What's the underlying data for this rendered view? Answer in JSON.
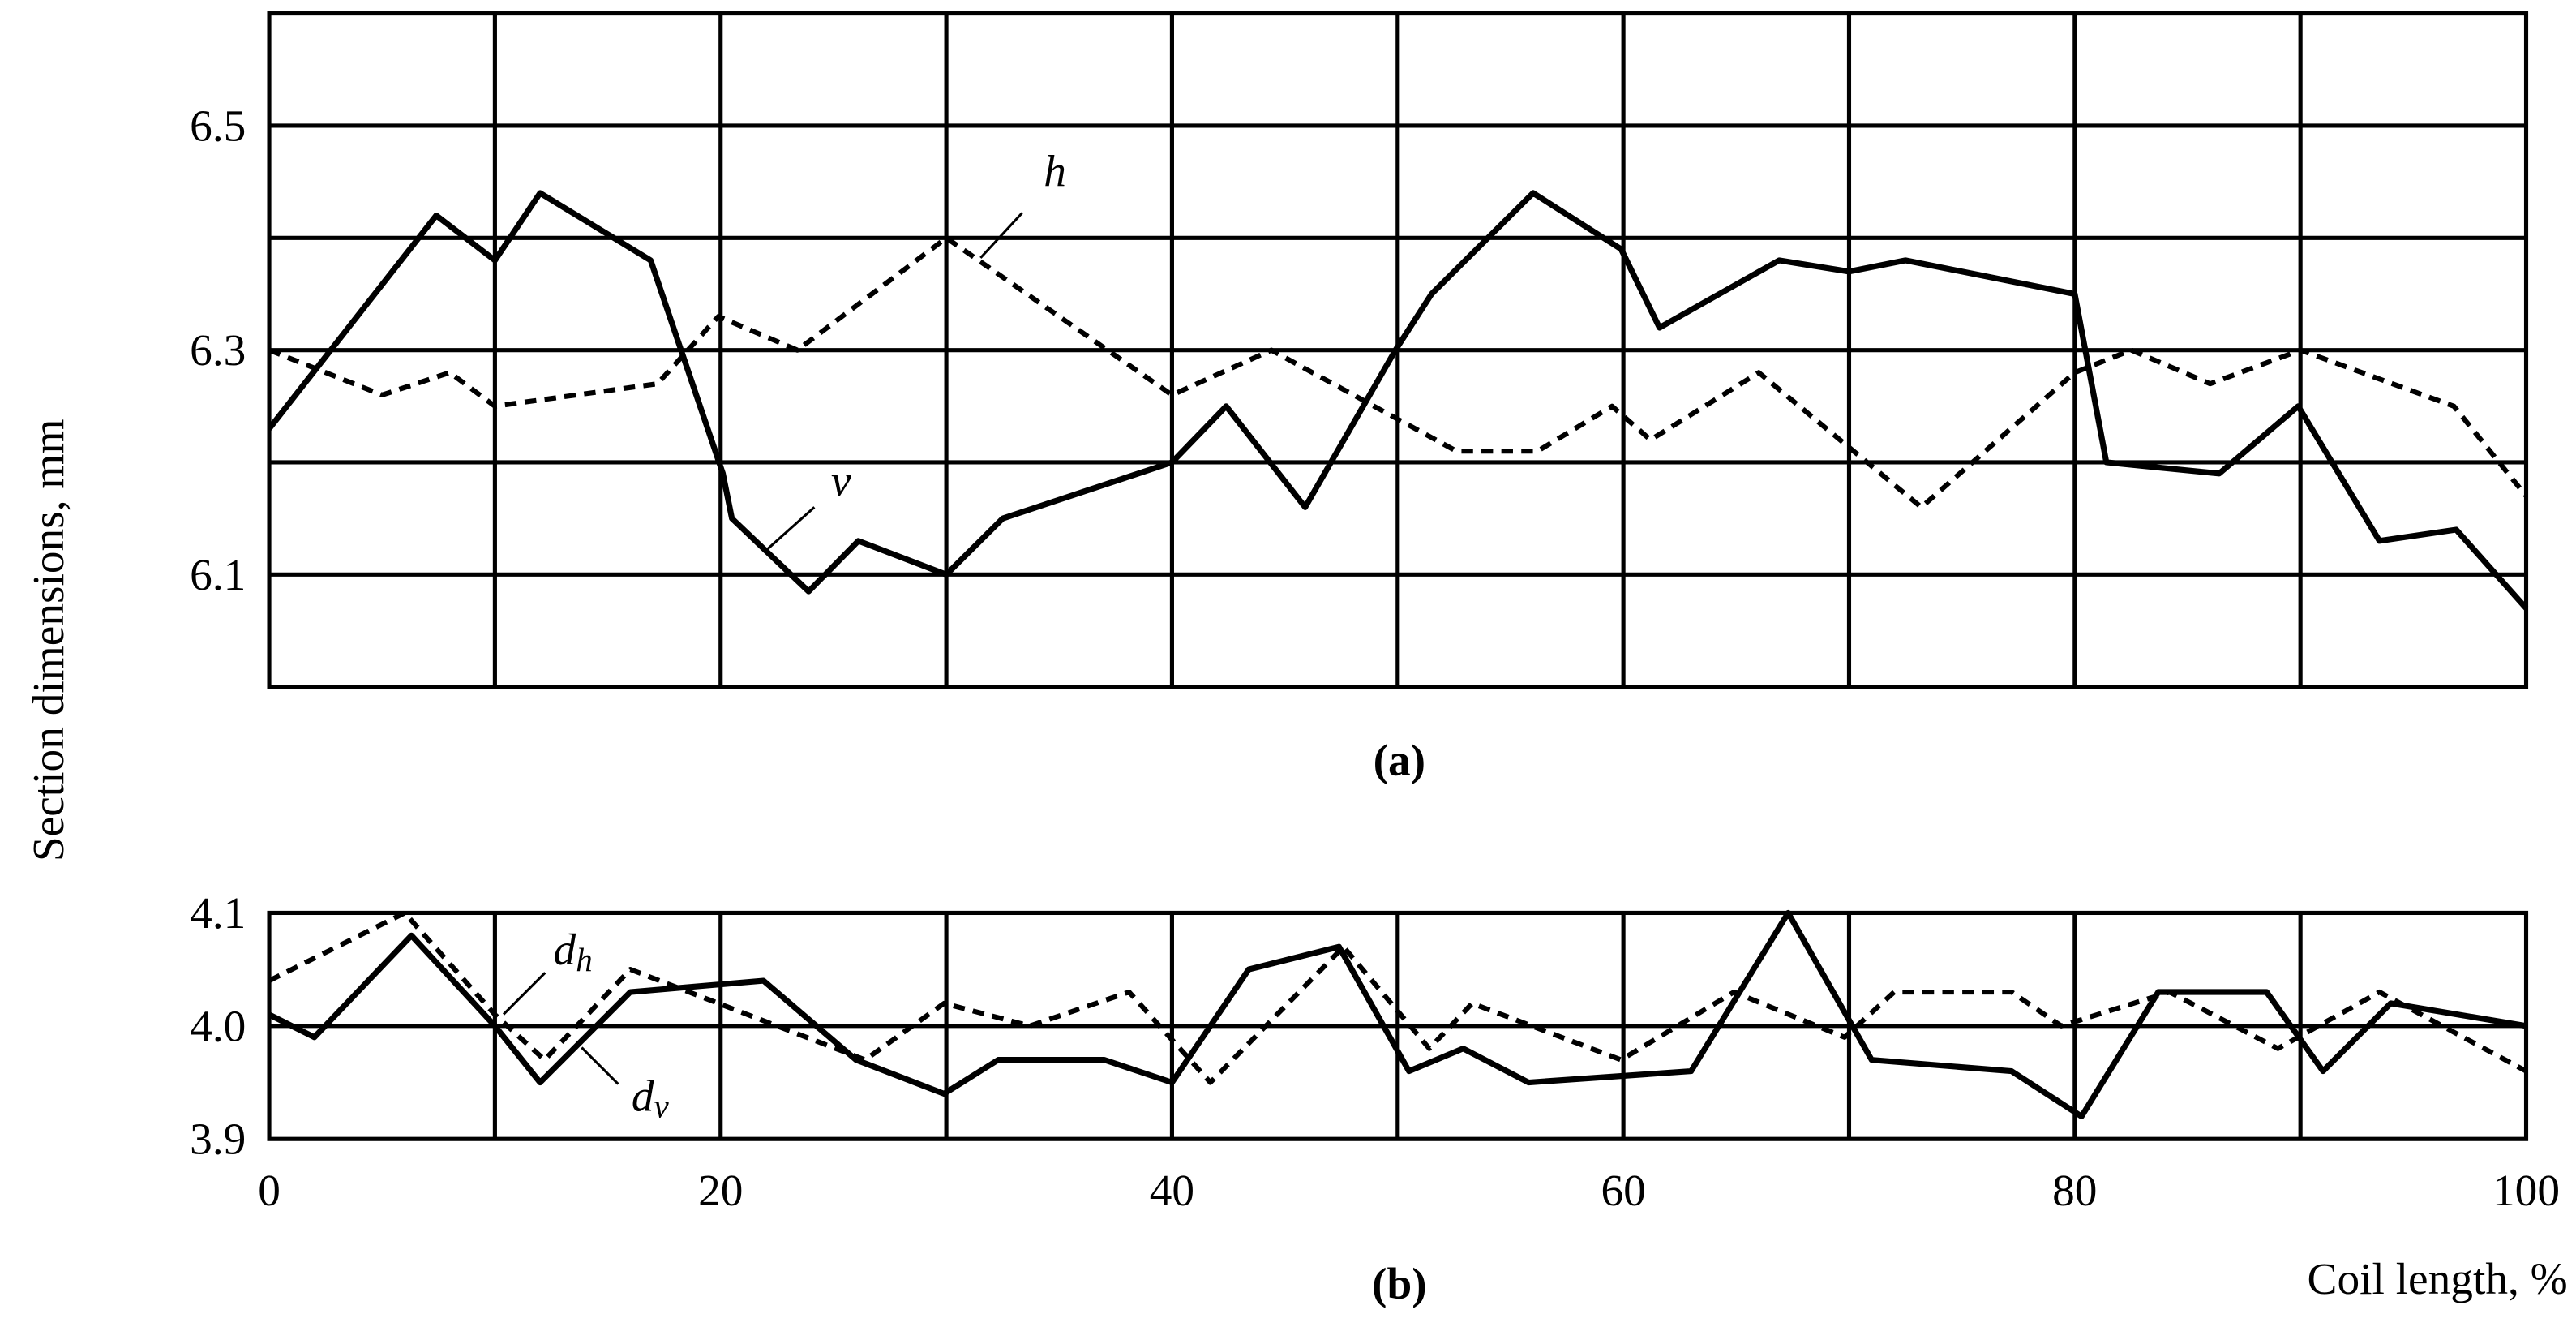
{
  "chart_data": [
    {
      "type": "line",
      "panel_label": "(a)",
      "xlim": [
        0,
        100
      ],
      "ylim": [
        6.0,
        6.6
      ],
      "yticks": [
        6.1,
        6.3,
        6.5
      ],
      "ygrid": [
        6.1,
        6.2,
        6.3,
        6.4,
        6.5
      ],
      "xgrid": [
        10,
        20,
        30,
        40,
        50,
        60,
        70,
        80,
        90
      ],
      "series": [
        {
          "name": "v",
          "color": "#000000",
          "style": "solid",
          "x": [
            0,
            7.4,
            10,
            12,
            16.9,
            20.1,
            20.5,
            23.9,
            26.1,
            30,
            32.5,
            40,
            42.4,
            45.9,
            49.9,
            51.5,
            56,
            59.9,
            61.6,
            66.9,
            70,
            72.5,
            80,
            81.4,
            86.4,
            89.9,
            93.5,
            96.9,
            100
          ],
          "values": [
            6.23,
            6.42,
            6.38,
            6.44,
            6.38,
            6.19,
            6.15,
            6.085,
            6.13,
            6.1,
            6.15,
            6.2,
            6.25,
            6.16,
            6.3,
            6.35,
            6.44,
            6.39,
            6.32,
            6.38,
            6.37,
            6.38,
            6.35,
            6.2,
            6.19,
            6.25,
            6.13,
            6.14,
            6.07
          ]
        },
        {
          "name": "h",
          "color": "#000000",
          "style": "dashed",
          "x": [
            0,
            5,
            8,
            10,
            17.2,
            19.9,
            23.4,
            30,
            40,
            44.4,
            52.6,
            56.2,
            59.5,
            61.2,
            66,
            73.2,
            80,
            82.5,
            86,
            90,
            96.8,
            100
          ],
          "values": [
            6.3,
            6.26,
            6.28,
            6.25,
            6.27,
            6.33,
            6.3,
            6.4,
            6.26,
            6.3,
            6.21,
            6.21,
            6.25,
            6.22,
            6.28,
            6.16,
            6.28,
            6.3,
            6.27,
            6.3,
            6.25,
            6.17
          ]
        }
      ]
    },
    {
      "type": "line",
      "panel_label": "(b)",
      "xlim": [
        0,
        100
      ],
      "ylim": [
        3.9,
        4.1
      ],
      "yticks": [
        3.9,
        {
          "value": 4.0,
          "label": "4.0"
        },
        4.1
      ],
      "ygrid": [
        4.0
      ],
      "xgrid": [
        10,
        20,
        30,
        40,
        50,
        60,
        70,
        80,
        90
      ],
      "xticks": [
        0,
        20,
        40,
        60,
        80,
        100
      ],
      "xlabel": "Coil length, %",
      "series": [
        {
          "name": "d",
          "name_sub": "v",
          "color": "#000000",
          "style": "solid",
          "x": [
            0,
            2,
            6.3,
            10,
            12,
            16,
            21.9,
            26,
            29.9,
            32.3,
            37,
            40,
            43.4,
            47.4,
            50.5,
            52.9,
            55.8,
            63,
            67.3,
            71,
            77.2,
            80.3,
            83.7,
            88.5,
            91,
            94,
            100
          ],
          "values": [
            4.01,
            3.99,
            4.08,
            4.0,
            3.95,
            4.03,
            4.04,
            3.97,
            3.94,
            3.97,
            3.97,
            3.95,
            4.05,
            4.07,
            3.96,
            3.98,
            3.95,
            3.96,
            4.1,
            3.97,
            3.96,
            3.92,
            4.03,
            4.03,
            3.96,
            4.02,
            4.0
          ]
        },
        {
          "name": "d",
          "name_sub": "h",
          "color": "#000000",
          "style": "dashed",
          "x": [
            0,
            6,
            10,
            12.2,
            16,
            26.4,
            29.9,
            33.7,
            38.1,
            41.7,
            47.6,
            51.4,
            53.3,
            59.9,
            64.9,
            69.8,
            72,
            77.2,
            79.4,
            84.2,
            89,
            93.5,
            100
          ],
          "values": [
            4.04,
            4.1,
            4.01,
            3.97,
            4.05,
            3.97,
            4.02,
            4.0,
            4.03,
            3.95,
            4.07,
            3.98,
            4.02,
            3.97,
            4.03,
            3.99,
            4.03,
            4.03,
            4.0,
            4.03,
            3.98,
            4.03,
            3.96
          ]
        }
      ]
    }
  ],
  "ylabel": "Section dimensions, mm"
}
